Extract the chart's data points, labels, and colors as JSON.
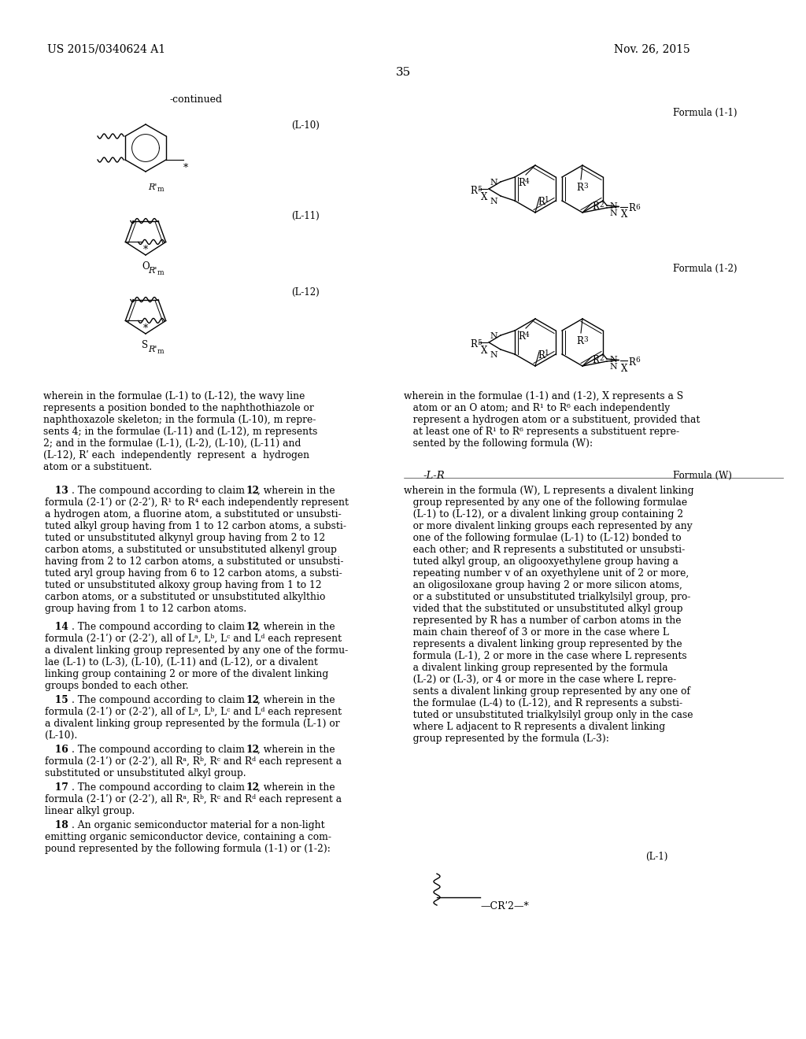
{
  "background_color": "#ffffff",
  "page_number": "35",
  "header_left": "US 2015/0340624 A1",
  "header_right": "Nov. 26, 2015",
  "continued_label": "-continued",
  "formula_l10": "(L-10)",
  "formula_l11": "(L-11)",
  "formula_l12": "(L-12)",
  "formula_11": "Formula (1-1)",
  "formula_12": "Formula (1-2)",
  "formula_w_label": "Formula (W)",
  "formula_w_text": "-L-R",
  "l1_label": "(L-1)"
}
